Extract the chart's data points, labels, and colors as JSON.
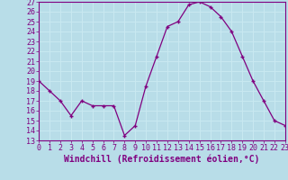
{
  "x": [
    0,
    1,
    2,
    3,
    4,
    5,
    6,
    7,
    8,
    9,
    10,
    11,
    12,
    13,
    14,
    15,
    16,
    17,
    18,
    19,
    20,
    21,
    22,
    23
  ],
  "y": [
    19,
    18,
    17,
    15.5,
    17,
    16.5,
    16.5,
    16.5,
    13.5,
    14.5,
    18.5,
    21.5,
    24.5,
    25,
    26.7,
    27,
    26.5,
    25.5,
    24,
    21.5,
    19,
    17,
    15,
    14.5
  ],
  "xlabel": "Windchill (Refroidissement éolien,°C)",
  "ylim_min": 13,
  "ylim_max": 27,
  "xlim_min": 0,
  "xlim_max": 23,
  "yticks": [
    13,
    14,
    15,
    16,
    17,
    18,
    19,
    20,
    21,
    22,
    23,
    24,
    25,
    26,
    27
  ],
  "xticks": [
    0,
    1,
    2,
    3,
    4,
    5,
    6,
    7,
    8,
    9,
    10,
    11,
    12,
    13,
    14,
    15,
    16,
    17,
    18,
    19,
    20,
    21,
    22,
    23
  ],
  "line_color": "#800080",
  "marker": "+",
  "bg_color": "#b8dde8",
  "grid_color": "#c8e8f0",
  "label_color": "#800080",
  "tick_color": "#800080",
  "spine_color": "#800080",
  "xlabel_fontsize": 7.0,
  "tick_fontsize": 6.0
}
